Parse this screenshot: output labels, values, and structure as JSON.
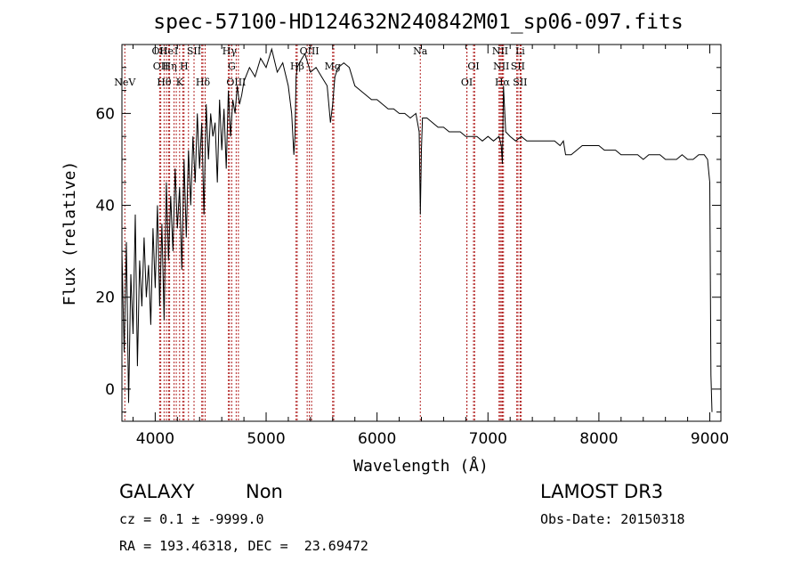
{
  "chart_data": {
    "type": "line",
    "title": "spec-57100-HD124632N240842M01_sp06-097.fits",
    "xlabel": "Wavelength (Å)",
    "ylabel": "Flux (relative)",
    "xlim": [
      3700,
      9100
    ],
    "ylim": [
      -7,
      75
    ],
    "xticks": [
      4000,
      5000,
      6000,
      7000,
      8000,
      9000
    ],
    "yticks": [
      0,
      20,
      40,
      60
    ],
    "grid": false,
    "series_color": "#000000",
    "line_marker_color": "#b22222",
    "spectrum": {
      "x": [
        3700,
        3720,
        3740,
        3760,
        3780,
        3800,
        3820,
        3840,
        3860,
        3880,
        3900,
        3920,
        3940,
        3960,
        3980,
        4000,
        4020,
        4040,
        4060,
        4080,
        4100,
        4120,
        4140,
        4160,
        4180,
        4200,
        4220,
        4240,
        4260,
        4280,
        4300,
        4320,
        4340,
        4360,
        4380,
        4400,
        4420,
        4440,
        4460,
        4480,
        4500,
        4520,
        4540,
        4560,
        4580,
        4600,
        4620,
        4640,
        4660,
        4680,
        4700,
        4720,
        4740,
        4760,
        4780,
        4800,
        4850,
        4900,
        4950,
        5000,
        5050,
        5100,
        5150,
        5200,
        5230,
        5250,
        5260,
        5270,
        5280,
        5300,
        5350,
        5400,
        5450,
        5500,
        5550,
        5580,
        5600,
        5620,
        5650,
        5700,
        5750,
        5800,
        5850,
        5900,
        5950,
        6000,
        6050,
        6100,
        6150,
        6200,
        6250,
        6300,
        6350,
        6380,
        6390,
        6400,
        6410,
        6450,
        6500,
        6550,
        6600,
        6650,
        6700,
        6750,
        6800,
        6850,
        6900,
        6950,
        7000,
        7050,
        7100,
        7120,
        7130,
        7140,
        7160,
        7200,
        7250,
        7300,
        7350,
        7400,
        7450,
        7500,
        7550,
        7600,
        7650,
        7680,
        7700,
        7750,
        7800,
        7850,
        7900,
        7950,
        8000,
        8050,
        8100,
        8150,
        8200,
        8250,
        8300,
        8350,
        8400,
        8450,
        8500,
        8550,
        8600,
        8650,
        8700,
        8750,
        8800,
        8850,
        8900,
        8950,
        8980,
        9000,
        9010,
        9020
      ],
      "y": [
        30,
        8,
        32,
        -3,
        25,
        12,
        38,
        5,
        28,
        18,
        33,
        20,
        27,
        14,
        35,
        22,
        40,
        18,
        36,
        15,
        45,
        28,
        42,
        30,
        48,
        35,
        44,
        26,
        50,
        33,
        52,
        40,
        55,
        45,
        60,
        48,
        58,
        38,
        62,
        50,
        60,
        55,
        58,
        45,
        63,
        52,
        61,
        48,
        65,
        55,
        63,
        60,
        66,
        62,
        64,
        67,
        70,
        68,
        72,
        70,
        74,
        69,
        71,
        66,
        60,
        51,
        55,
        68,
        70,
        71,
        73,
        69,
        70,
        68,
        66,
        58,
        62,
        68,
        70,
        71,
        70,
        66,
        65,
        64,
        63,
        63,
        62,
        61,
        61,
        60,
        60,
        59,
        60,
        56,
        38,
        52,
        59,
        59,
        58,
        57,
        57,
        56,
        56,
        56,
        55,
        55,
        55,
        54,
        55,
        54,
        55,
        53,
        49,
        66,
        56,
        55,
        54,
        55,
        54,
        54,
        54,
        54,
        54,
        54,
        53,
        54,
        51,
        51,
        52,
        53,
        53,
        53,
        53,
        52,
        52,
        52,
        51,
        51,
        51,
        51,
        50,
        51,
        51,
        51,
        50,
        50,
        50,
        51,
        50,
        50,
        51,
        51,
        50,
        45,
        3,
        -5
      ]
    },
    "line_markers": [
      {
        "name": "NeV",
        "x": 3726,
        "row": "r3"
      },
      {
        "name": "OII",
        "x": 4040,
        "row": "r1"
      },
      {
        "name": "OII",
        "x": 4050,
        "row": "r2"
      },
      {
        "name": "Hθ",
        "x": 4080,
        "row": "r3"
      },
      {
        "name": "He",
        "x": 4101,
        "row": "r1"
      },
      {
        "name": "Hη",
        "x": 4130,
        "row": "r2"
      },
      {
        "name": "I",
        "x": 4190,
        "row": "r1"
      },
      {
        "name": "H",
        "x": 4260,
        "row": "r2"
      },
      {
        "name": "K",
        "x": 4220,
        "row": "r3"
      },
      {
        "name": "SII",
        "x": 4350,
        "row": "r1"
      },
      {
        "name": "Hδ",
        "x": 4430,
        "row": "r3"
      },
      {
        "name": "Hγ",
        "x": 4670,
        "row": "r1"
      },
      {
        "name": "G",
        "x": 4690,
        "row": "r2"
      },
      {
        "name": "OIII",
        "x": 4730,
        "row": "r3"
      },
      {
        "name": "OIII",
        "x": 5390,
        "row": "r1"
      },
      {
        "name": "Hβ",
        "x": 5280,
        "row": "r2"
      },
      {
        "name": "Mg",
        "x": 5600,
        "row": "r2"
      },
      {
        "name": "Na",
        "x": 6390,
        "row": "r1"
      },
      {
        "name": "OI",
        "x": 6870,
        "row": "r2"
      },
      {
        "name": "OI",
        "x": 6810,
        "row": "r3"
      },
      {
        "name": "NII",
        "x": 7110,
        "row": "r1"
      },
      {
        "name": "NII",
        "x": 7120,
        "row": "r2"
      },
      {
        "name": "Hα",
        "x": 7130,
        "row": "r3"
      },
      {
        "name": "Li",
        "x": 7290,
        "row": "r1"
      },
      {
        "name": "SII",
        "x": 7270,
        "row": "r2"
      },
      {
        "name": "SII",
        "x": 7290,
        "row": "r3"
      }
    ],
    "extra_marker_lines": [
      4120,
      4170,
      4250,
      4300,
      4420,
      4450,
      4660,
      4750,
      5270,
      5370,
      5410,
      5610,
      6810,
      6880,
      7100,
      7140,
      7260,
      7300
    ]
  },
  "info": {
    "classification": "GALAXY",
    "subclass": "Non",
    "survey": "LAMOST DR3",
    "cz": "cz = 0.1 ± -9999.0",
    "obs_date": "Obs-Date: 20150318",
    "radec": "RA = 193.46318, DEC =  23.69472"
  }
}
